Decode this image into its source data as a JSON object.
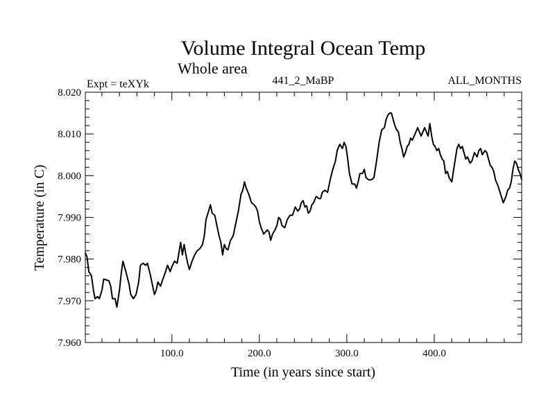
{
  "chart_data": {
    "type": "line",
    "title": "Volume Integral Ocean Temp",
    "subtitle": "Whole area",
    "left_label": "Expt = teXYk",
    "center_label": "441_2_MaBP",
    "right_label": "ALL_MONTHS",
    "xlabel": "Time (in years since start)",
    "ylabel": "Temperature (in C)",
    "xlim": [
      1,
      500
    ],
    "ylim": [
      7.96,
      8.02
    ],
    "x_ticks": [
      100,
      200,
      300,
      400
    ],
    "x_tick_labels": [
      "100.0",
      "200.0",
      "300.0",
      "400.0"
    ],
    "y_ticks": [
      7.96,
      7.97,
      7.98,
      7.99,
      8.0,
      8.01,
      8.02
    ],
    "y_tick_labels": [
      "7.960",
      "7.970",
      "7.980",
      "7.990",
      "8.000",
      "8.010",
      "8.020"
    ],
    "grid": false,
    "legend": "none",
    "line_color": "#000000",
    "series": [
      {
        "points": [
          [
            1,
            7.9815
          ],
          [
            3,
            7.9805
          ],
          [
            5,
            7.977
          ],
          [
            8,
            7.976
          ],
          [
            10,
            7.973
          ],
          [
            12,
            7.9705
          ],
          [
            15,
            7.971
          ],
          [
            17,
            7.9705
          ],
          [
            20,
            7.9725
          ],
          [
            22,
            7.9752
          ],
          [
            25,
            7.975
          ],
          [
            28,
            7.9748
          ],
          [
            30,
            7.9735
          ],
          [
            32,
            7.9705
          ],
          [
            35,
            7.9705
          ],
          [
            37,
            7.9685
          ],
          [
            40,
            7.9725
          ],
          [
            42,
            7.9765
          ],
          [
            44,
            7.9795
          ],
          [
            46,
            7.978
          ],
          [
            48,
            7.9765
          ],
          [
            51,
            7.974
          ],
          [
            53,
            7.9715
          ],
          [
            56,
            7.9705
          ],
          [
            59,
            7.9715
          ],
          [
            62,
            7.9745
          ],
          [
            64,
            7.9785
          ],
          [
            67,
            7.979
          ],
          [
            70,
            7.9785
          ],
          [
            72,
            7.979
          ],
          [
            75,
            7.9765
          ],
          [
            78,
            7.9735
          ],
          [
            80,
            7.9715
          ],
          [
            82,
            7.9725
          ],
          [
            84,
            7.9745
          ],
          [
            87,
            7.9735
          ],
          [
            89,
            7.9748
          ],
          [
            92,
            7.9765
          ],
          [
            95,
            7.9785
          ],
          [
            98,
            7.977
          ],
          [
            100,
            7.9782
          ],
          [
            103,
            7.9795
          ],
          [
            106,
            7.979
          ],
          [
            108,
            7.9815
          ],
          [
            110,
            7.984
          ],
          [
            112,
            7.981
          ],
          [
            114,
            7.9835
          ],
          [
            116,
            7.981
          ],
          [
            118,
            7.979
          ],
          [
            120,
            7.9775
          ],
          [
            123,
            7.9795
          ],
          [
            126,
            7.981
          ],
          [
            129,
            7.982
          ],
          [
            132,
            7.9825
          ],
          [
            135,
            7.9835
          ],
          [
            137,
            7.9855
          ],
          [
            139,
            7.9895
          ],
          [
            142,
            7.9915
          ],
          [
            144,
            7.993
          ],
          [
            146,
            7.991
          ],
          [
            149,
            7.9905
          ],
          [
            152,
            7.9875
          ],
          [
            154,
            7.9855
          ],
          [
            156,
            7.984
          ],
          [
            158,
            7.981
          ],
          [
            160,
            7.9835
          ],
          [
            162,
            7.9825
          ],
          [
            164,
            7.9822
          ],
          [
            167,
            7.9845
          ],
          [
            170,
            7.9855
          ],
          [
            173,
            7.9885
          ],
          [
            176,
            7.9915
          ],
          [
            179,
            7.9955
          ],
          [
            181,
            7.9965
          ],
          [
            183,
            7.9985
          ],
          [
            185,
            7.997
          ],
          [
            188,
            7.9955
          ],
          [
            191,
            7.9935
          ],
          [
            194,
            7.993
          ],
          [
            196,
            7.9925
          ],
          [
            198,
            7.9915
          ],
          [
            200,
            7.989
          ],
          [
            202,
            7.9875
          ],
          [
            205,
            7.986
          ],
          [
            207,
            7.9865
          ],
          [
            209,
            7.987
          ],
          [
            211,
            7.9865
          ],
          [
            213,
            7.9845
          ],
          [
            215,
            7.986
          ],
          [
            218,
            7.987
          ],
          [
            220,
            7.988
          ],
          [
            222,
            7.99
          ],
          [
            224,
            7.9895
          ],
          [
            226,
            7.988
          ],
          [
            229,
            7.9875
          ],
          [
            232,
            7.9895
          ],
          [
            235,
            7.9905
          ],
          [
            238,
            7.9905
          ],
          [
            241,
            7.9925
          ],
          [
            244,
            7.9915
          ],
          [
            246,
            7.992
          ],
          [
            248,
            7.9935
          ],
          [
            250,
            7.994
          ],
          [
            252,
            7.9925
          ],
          [
            254,
            7.9928
          ],
          [
            256,
            7.991
          ],
          [
            258,
            7.9915
          ],
          [
            260,
            7.993
          ],
          [
            262,
            7.9935
          ],
          [
            265,
            7.995
          ],
          [
            268,
            7.9945
          ],
          [
            270,
            7.9945
          ],
          [
            272,
            7.996
          ],
          [
            275,
            7.9965
          ],
          [
            278,
            7.996
          ],
          [
            281,
            7.999
          ],
          [
            284,
            8.0015
          ],
          [
            287,
            8.0035
          ],
          [
            289,
            8.006
          ],
          [
            292,
            8.0075
          ],
          [
            295,
            8.0065
          ],
          [
            297,
            8.008
          ],
          [
            299,
            8.007
          ],
          [
            301,
            8.004
          ],
          [
            303,
            8.0005
          ],
          [
            306,
            7.998
          ],
          [
            309,
            7.998
          ],
          [
            311,
            7.997
          ],
          [
            313,
            7.9985
          ],
          [
            315,
            8.0005
          ],
          [
            318,
            8.0005
          ],
          [
            320,
            8.0015
          ],
          [
            322,
            7.9995
          ],
          [
            325,
            7.999
          ],
          [
            328,
            7.999
          ],
          [
            331,
            7.9995
          ],
          [
            334,
            8.0035
          ],
          [
            337,
            8.008
          ],
          [
            340,
            8.011
          ],
          [
            343,
            8.0115
          ],
          [
            345,
            8.0135
          ],
          [
            347,
            8.0145
          ],
          [
            349,
            8.015
          ],
          [
            351,
            8.015
          ],
          [
            353,
            8.0135
          ],
          [
            355,
            8.012
          ],
          [
            357,
            8.011
          ],
          [
            359,
            8.0105
          ],
          [
            361,
            8.008
          ],
          [
            363,
            8.0065
          ],
          [
            365,
            8.0045
          ],
          [
            367,
            8.0055
          ],
          [
            369,
            8.007
          ],
          [
            371,
            8.0075
          ],
          [
            373,
            8.009
          ],
          [
            375,
            8.0085
          ],
          [
            377,
            8.0095
          ],
          [
            379,
            8.0105
          ],
          [
            381,
            8.0115
          ],
          [
            383,
            8.0105
          ],
          [
            385,
            8.0095
          ],
          [
            387,
            8.0105
          ],
          [
            389,
            8.0115
          ],
          [
            391,
            8.0105
          ],
          [
            393,
            8.0095
          ],
          [
            395,
            8.0125
          ],
          [
            397,
            8.0095
          ],
          [
            399,
            8.0075
          ],
          [
            401,
            8.007
          ],
          [
            403,
            8.006
          ],
          [
            405,
            8.0065
          ],
          [
            407,
            8.005
          ],
          [
            409,
            8.004
          ],
          [
            411,
            8.0035
          ],
          [
            413,
            8.0005
          ],
          [
            415,
            8.001
          ],
          [
            417,
            7.9995
          ],
          [
            420,
            7.9985
          ],
          [
            423,
            8.0025
          ],
          [
            426,
            8.0065
          ],
          [
            428,
            8.0075
          ],
          [
            430,
            8.0065
          ],
          [
            432,
            8.007
          ],
          [
            434,
            8.0055
          ],
          [
            436,
            8.004
          ],
          [
            438,
            8.0045
          ],
          [
            441,
            8.003
          ],
          [
            443,
            8.0035
          ],
          [
            446,
            8.0055
          ],
          [
            449,
            8.0045
          ],
          [
            451,
            8.006
          ],
          [
            453,
            8.0065
          ],
          [
            455,
            8.005
          ],
          [
            458,
            8.006
          ],
          [
            460,
            8.0055
          ],
          [
            462,
            8.004
          ],
          [
            464,
            8.0025
          ],
          [
            466,
            8.002
          ],
          [
            468,
            8.001
          ],
          [
            470,
            7.999
          ],
          [
            473,
            7.9975
          ],
          [
            476,
            7.9955
          ],
          [
            479,
            7.9935
          ],
          [
            482,
            7.995
          ],
          [
            484,
            7.9965
          ],
          [
            486,
            7.997
          ],
          [
            488,
            7.9985
          ],
          [
            490,
            8.0015
          ],
          [
            492,
            8.0035
          ],
          [
            494,
            8.003
          ],
          [
            496,
            8.0015
          ],
          [
            498,
            8.0005
          ],
          [
            500,
            7.999
          ]
        ]
      }
    ]
  }
}
